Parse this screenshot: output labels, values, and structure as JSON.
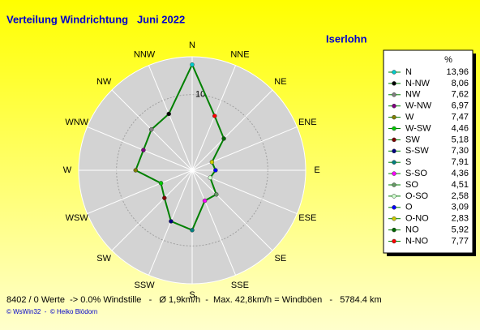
{
  "chart_data": {
    "type": "radar",
    "title": "Verteilung Windrichtung   Juni 2022",
    "subtitle": "Iserlohn",
    "directions": [
      "N",
      "NNE",
      "NE",
      "ENE",
      "E",
      "ESE",
      "SE",
      "SSE",
      "S",
      "SSW",
      "SW",
      "WSW",
      "W",
      "WNW",
      "NW",
      "NNW"
    ],
    "rlim": [
      0,
      15
    ],
    "rticks": [
      10
    ],
    "line_color": "#008000",
    "legend_title": "%",
    "categories": [
      "N",
      "N-NW",
      "NW",
      "W-NW",
      "W",
      "W-SW",
      "SW",
      "S-SW",
      "S",
      "S-SO",
      "SO",
      "O-SO",
      "O",
      "O-NO",
      "NO",
      "N-NO"
    ],
    "values": [
      13.96,
      8.06,
      7.62,
      6.97,
      7.47,
      4.46,
      5.18,
      7.3,
      7.91,
      4.36,
      4.51,
      2.58,
      3.09,
      2.83,
      5.92,
      7.77
    ],
    "value_labels": [
      "13,96",
      "8,06",
      "7,62",
      "6,97",
      "7,47",
      "4,46",
      "5,18",
      "7,30",
      "7,91",
      "4,36",
      "4,51",
      "2,58",
      "3,09",
      "2,83",
      "5,92",
      "7,77"
    ],
    "colors": [
      "#00cccc",
      "#000000",
      "#808080",
      "#800080",
      "#808000",
      "#00cc00",
      "#800000",
      "#000080",
      "#008080",
      "#ff00ff",
      "#669966",
      "#ccffcc",
      "#0000ff",
      "#cccc00",
      "#006600",
      "#ff0000"
    ],
    "footer": "8402 / 0 Werte  -> 0.0% Windstille   -   Ø 1,9km/h  -  Max. 42,8km/h = Windböen   -   5784.4 km",
    "credit": "© WsWin32  -  © Heiko Blödorn"
  }
}
